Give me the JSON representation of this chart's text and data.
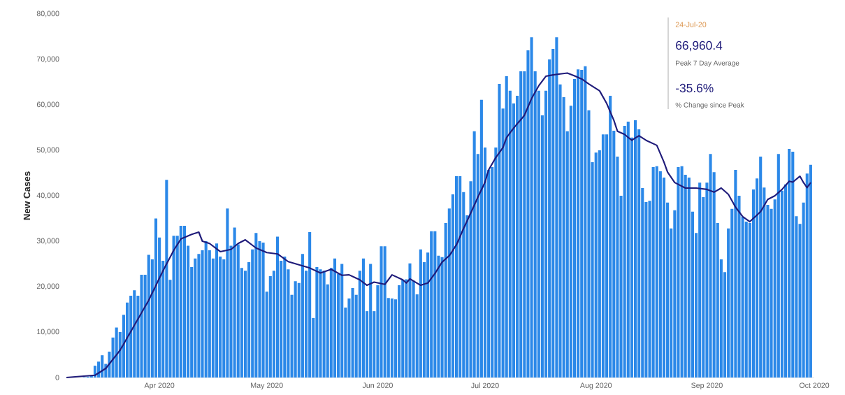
{
  "chart_data": {
    "type": "bar",
    "ylabel": "New Cases",
    "annotations": [
      "24-Jul-20",
      "66,960.4",
      "Peak 7 Day Average",
      "-35.6%",
      "% Change since Peak"
    ],
    "x": [
      "2020-03-11",
      "2020-03-12",
      "2020-03-13",
      "2020-03-14",
      "2020-03-15",
      "2020-03-16",
      "2020-03-17",
      "2020-03-18",
      "2020-03-19",
      "2020-03-20",
      "2020-03-21",
      "2020-03-22",
      "2020-03-23",
      "2020-03-24",
      "2020-03-25",
      "2020-03-26",
      "2020-03-27",
      "2020-03-28",
      "2020-03-29",
      "2020-03-30",
      "2020-03-31",
      "2020-04-01",
      "2020-04-02",
      "2020-04-03",
      "2020-04-04",
      "2020-04-05",
      "2020-04-06",
      "2020-04-07",
      "2020-04-08",
      "2020-04-09",
      "2020-04-10",
      "2020-04-11",
      "2020-04-12",
      "2020-04-13",
      "2020-04-14",
      "2020-04-15",
      "2020-04-16",
      "2020-04-17",
      "2020-04-18",
      "2020-04-19",
      "2020-04-20",
      "2020-04-21",
      "2020-04-22",
      "2020-04-23",
      "2020-04-24",
      "2020-04-25",
      "2020-04-26",
      "2020-04-27",
      "2020-04-28",
      "2020-04-29",
      "2020-04-30",
      "2020-05-01",
      "2020-05-02",
      "2020-05-03",
      "2020-05-04",
      "2020-05-05",
      "2020-05-06",
      "2020-05-07",
      "2020-05-08",
      "2020-05-09",
      "2020-05-10",
      "2020-05-11",
      "2020-05-12",
      "2020-05-13",
      "2020-05-14",
      "2020-05-15",
      "2020-05-16",
      "2020-05-17",
      "2020-05-18",
      "2020-05-19",
      "2020-05-20",
      "2020-05-21",
      "2020-05-22",
      "2020-05-23",
      "2020-05-24",
      "2020-05-25",
      "2020-05-26",
      "2020-05-27",
      "2020-05-28",
      "2020-05-29",
      "2020-05-30",
      "2020-05-31",
      "2020-06-01",
      "2020-06-02",
      "2020-06-03",
      "2020-06-04",
      "2020-06-05",
      "2020-06-06",
      "2020-06-07",
      "2020-06-08",
      "2020-06-09",
      "2020-06-10",
      "2020-06-11",
      "2020-06-12",
      "2020-06-13",
      "2020-06-14",
      "2020-06-15",
      "2020-06-16",
      "2020-06-17",
      "2020-06-18",
      "2020-06-19",
      "2020-06-20",
      "2020-06-21",
      "2020-06-22",
      "2020-06-23",
      "2020-06-24",
      "2020-06-25",
      "2020-06-26",
      "2020-06-27",
      "2020-06-28",
      "2020-06-29",
      "2020-06-30",
      "2020-07-01",
      "2020-07-02",
      "2020-07-03",
      "2020-07-04",
      "2020-07-05",
      "2020-07-06",
      "2020-07-07",
      "2020-07-08",
      "2020-07-09",
      "2020-07-10",
      "2020-07-11",
      "2020-07-12",
      "2020-07-13",
      "2020-07-14",
      "2020-07-15",
      "2020-07-16",
      "2020-07-17",
      "2020-07-18",
      "2020-07-19",
      "2020-07-20",
      "2020-07-21",
      "2020-07-22",
      "2020-07-23",
      "2020-07-24",
      "2020-07-25",
      "2020-07-26",
      "2020-07-27",
      "2020-07-28",
      "2020-07-29",
      "2020-07-30",
      "2020-07-31",
      "2020-08-01",
      "2020-08-02",
      "2020-08-03",
      "2020-08-04",
      "2020-08-05",
      "2020-08-06",
      "2020-08-07",
      "2020-08-08",
      "2020-08-09",
      "2020-08-10",
      "2020-08-11",
      "2020-08-12",
      "2020-08-13",
      "2020-08-14",
      "2020-08-15",
      "2020-08-16",
      "2020-08-17",
      "2020-08-18",
      "2020-08-19",
      "2020-08-20",
      "2020-08-21",
      "2020-08-22",
      "2020-08-23",
      "2020-08-24",
      "2020-08-25",
      "2020-08-26",
      "2020-08-27",
      "2020-08-28",
      "2020-08-29",
      "2020-08-30",
      "2020-08-31",
      "2020-09-01",
      "2020-09-02",
      "2020-09-03",
      "2020-09-04",
      "2020-09-05",
      "2020-09-06",
      "2020-09-07",
      "2020-09-08",
      "2020-09-09",
      "2020-09-10",
      "2020-09-11",
      "2020-09-12",
      "2020-09-13",
      "2020-09-14",
      "2020-09-15",
      "2020-09-16",
      "2020-09-17",
      "2020-09-18",
      "2020-09-19",
      "2020-09-20",
      "2020-09-21",
      "2020-09-22",
      "2020-09-23",
      "2020-09-24",
      "2020-09-25",
      "2020-09-26",
      "2020-09-27",
      "2020-09-28",
      "2020-09-29",
      "2020-09-30"
    ],
    "series": [
      {
        "color": "#2b88e8",
        "values": [
          100,
          200,
          500,
          2600,
          3500,
          4900,
          3000,
          5700,
          8800,
          11000,
          10000,
          13800,
          16500,
          18000,
          19200,
          18000,
          22600,
          22600,
          27000,
          26000,
          35000,
          30800,
          25700,
          43500,
          21500,
          31200,
          31200,
          33400,
          33400,
          29000,
          24300,
          26200,
          27200,
          28000,
          30000,
          28000,
          26200,
          29500,
          26600,
          26000,
          37200,
          29000,
          33000,
          29300,
          24100,
          23500,
          25400,
          28200,
          31800,
          30000,
          29700,
          18900,
          22300,
          23500,
          31000,
          25700,
          26600,
          23800,
          18200,
          21200,
          20800,
          27200,
          23500,
          32000,
          13100,
          24300,
          23800,
          23500,
          20500,
          24100,
          26200,
          22800,
          25000,
          15400,
          17400,
          19700,
          18200,
          23500,
          26200,
          14600,
          25000,
          14600,
          20300,
          28900,
          28900,
          17500,
          17400,
          17200,
          20300,
          21500,
          21600,
          25100,
          21300,
          18300,
          28200,
          25400,
          27500,
          32200,
          32200,
          26800,
          26500,
          34000,
          37200,
          40300,
          44300,
          44300,
          40800,
          35700,
          43200,
          54200,
          49200,
          61100,
          50600,
          45700,
          46300,
          50600,
          64600,
          59200,
          66300,
          63100,
          60300,
          62000,
          67400,
          67400,
          72000,
          74900,
          67400,
          63100,
          57700,
          63100,
          70000,
          72300,
          74900,
          64500,
          61700,
          54200,
          59800,
          65700,
          67800,
          67700,
          68500,
          58800,
          47400,
          49500,
          50000,
          53500,
          53500,
          62000,
          54300,
          48600,
          40000,
          55400,
          56300,
          52800,
          56600,
          54600,
          41700,
          38600,
          38900,
          46300,
          46500,
          45400,
          44000,
          38500,
          32800,
          36800,
          46300,
          46500,
          44600,
          44000,
          36500,
          31800,
          42900,
          39700,
          42900,
          49200,
          45200,
          34000,
          26000,
          23200,
          32800,
          37100,
          45700,
          40000,
          35400,
          34300,
          34000,
          41400,
          43800,
          48600,
          41800,
          38000,
          37100,
          39200,
          49200,
          41100,
          42500,
          50300,
          49700,
          35500,
          33800,
          38500,
          44900,
          46800
        ]
      },
      {
        "type": "line",
        "color": "#1f1b7a",
        "x": [
          "2020-03-06",
          "2020-03-14",
          "2020-03-17",
          "2020-03-21",
          "2020-03-25",
          "2020-03-29",
          "2020-04-02",
          "2020-04-05",
          "2020-04-07",
          "2020-04-10",
          "2020-04-12",
          "2020-04-13",
          "2020-04-15",
          "2020-04-18",
          "2020-04-21",
          "2020-04-23",
          "2020-04-25",
          "2020-04-28",
          "2020-05-01",
          "2020-05-04",
          "2020-05-07",
          "2020-05-10",
          "2020-05-13",
          "2020-05-16",
          "2020-05-19",
          "2020-05-22",
          "2020-05-24",
          "2020-05-27",
          "2020-05-29",
          "2020-05-31",
          "2020-06-03",
          "2020-06-05",
          "2020-06-08",
          "2020-06-09",
          "2020-06-10",
          "2020-06-13",
          "2020-06-15",
          "2020-06-17",
          "2020-06-19",
          "2020-06-21",
          "2020-06-23",
          "2020-06-25",
          "2020-06-27",
          "2020-06-29",
          "2020-07-01",
          "2020-07-02",
          "2020-07-04",
          "2020-07-06",
          "2020-07-07",
          "2020-07-09",
          "2020-07-12",
          "2020-07-14",
          "2020-07-16",
          "2020-07-18",
          "2020-07-20",
          "2020-07-22",
          "2020-07-24",
          "2020-07-26",
          "2020-07-28",
          "2020-07-30",
          "2020-08-02",
          "2020-08-04",
          "2020-08-06",
          "2020-08-07",
          "2020-08-09",
          "2020-08-11",
          "2020-08-13",
          "2020-08-15",
          "2020-08-18",
          "2020-08-20",
          "2020-08-21",
          "2020-08-23",
          "2020-08-26",
          "2020-08-29",
          "2020-09-01",
          "2020-09-03",
          "2020-09-05",
          "2020-09-07",
          "2020-09-09",
          "2020-09-11",
          "2020-09-13",
          "2020-09-16",
          "2020-09-18",
          "2020-09-20",
          "2020-09-22",
          "2020-09-24",
          "2020-09-25",
          "2020-09-27",
          "2020-09-28",
          "2020-09-29",
          "2020-09-30"
        ],
        "values": [
          0,
          500,
          2000,
          6000,
          11500,
          17000,
          23500,
          28000,
          30500,
          31500,
          32000,
          30000,
          29500,
          27700,
          28200,
          29500,
          30300,
          28500,
          27500,
          27200,
          25500,
          24800,
          24100,
          23000,
          23800,
          22500,
          22600,
          21500,
          20300,
          21000,
          20500,
          22600,
          21500,
          20800,
          21700,
          20300,
          20800,
          22900,
          25400,
          26800,
          29200,
          32800,
          36200,
          39700,
          43000,
          45700,
          48400,
          50600,
          52800,
          54900,
          57700,
          61400,
          64200,
          66300,
          66600,
          66800,
          67000,
          66400,
          65700,
          64600,
          63100,
          60300,
          56600,
          54200,
          53500,
          52200,
          53200,
          52200,
          51100,
          47400,
          45200,
          42900,
          41700,
          41700,
          41400,
          40800,
          41700,
          40300,
          37500,
          35400,
          34300,
          36500,
          39200,
          40000,
          41400,
          43200,
          43000,
          44300,
          42900,
          41800,
          42900
        ]
      }
    ],
    "xlim": [
      "2020-03-06",
      "2020-10-01"
    ],
    "xticks": [
      {
        "value": "2020-04-01",
        "label": "Apr 2020"
      },
      {
        "value": "2020-05-01",
        "label": "May 2020"
      },
      {
        "value": "2020-06-01",
        "label": "Jun 2020"
      },
      {
        "value": "2020-07-01",
        "label": "Jul 2020"
      },
      {
        "value": "2020-08-01",
        "label": "Aug 2020"
      },
      {
        "value": "2020-09-01",
        "label": "Sep 2020"
      },
      {
        "value": "2020-10-01",
        "label": "Oct 2020"
      }
    ],
    "ylim": [
      0,
      80000
    ],
    "yticks": [
      0,
      {
        "value": 10000,
        "label": "10,000"
      },
      {
        "value": 20000,
        "label": "20,000"
      },
      {
        "value": 30000,
        "label": "30,000"
      },
      {
        "value": 40000,
        "label": "40,000"
      },
      {
        "value": 50000,
        "label": "50,000"
      },
      {
        "value": 60000,
        "label": "60,000"
      },
      {
        "value": 70000,
        "label": "70,000"
      },
      {
        "value": 80000,
        "label": "80,000"
      }
    ]
  }
}
